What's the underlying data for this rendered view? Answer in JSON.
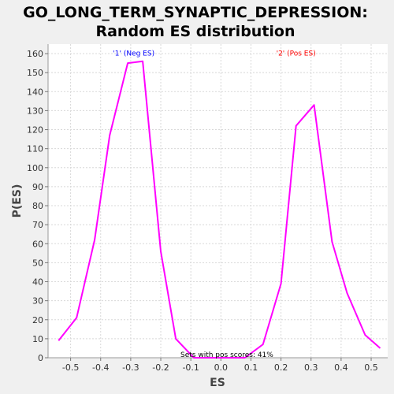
{
  "chart_data": {
    "type": "line",
    "title": "GO_LONG_TERM_SYNAPTIC_DEPRESSION: Random ES distribution",
    "title_lines": [
      "GO_LONG_TERM_SYNAPTIC_DEPRESSION:",
      "Random ES distribution"
    ],
    "xlabel": "ES",
    "ylabel": "P(ES)",
    "xlim": [
      -0.575,
      0.555
    ],
    "ylim": [
      0,
      165
    ],
    "x_ticks": [
      -0.5,
      -0.4,
      -0.3,
      -0.2,
      -0.1,
      0.0,
      0.1,
      0.2,
      0.3,
      0.4,
      0.5
    ],
    "x_tick_labels": [
      "-0.5",
      "-0.4",
      "-0.3",
      "-0.2",
      "-0.1",
      "0.0",
      "0.1",
      "0.2",
      "0.3",
      "0.4",
      "0.5"
    ],
    "y_ticks": [
      0,
      10,
      20,
      30,
      40,
      50,
      60,
      70,
      80,
      90,
      100,
      110,
      120,
      130,
      140,
      150,
      160
    ],
    "y_tick_labels": [
      "0",
      "10",
      "20",
      "30",
      "40",
      "50",
      "60",
      "70",
      "80",
      "90",
      "100",
      "110",
      "120",
      "130",
      "140",
      "150",
      "160"
    ],
    "grid": true,
    "series": [
      {
        "color": "#ff00ff",
        "x": [
          -0.54,
          -0.48,
          -0.42,
          -0.37,
          -0.31,
          -0.26,
          -0.2,
          -0.15,
          -0.09,
          -0.04,
          0.02,
          0.08,
          0.14,
          0.2,
          0.25,
          0.31,
          0.37,
          0.42,
          0.48,
          0.53
        ],
        "y": [
          9,
          21,
          62,
          117,
          155,
          156,
          56,
          10,
          0,
          0,
          0,
          0,
          7,
          39,
          122,
          133,
          61,
          34,
          12,
          5
        ]
      }
    ],
    "annotations": [
      {
        "text": "'1' (Neg ES)",
        "x": -0.29,
        "y": 159,
        "color": "#0000ff"
      },
      {
        "text": "'2' (Pos ES)",
        "x": 0.25,
        "y": 159,
        "color": "#ff0000"
      },
      {
        "text": "Sets with pos scores: 41%",
        "x": 0.02,
        "y": 0.5,
        "color": "#000000"
      }
    ]
  }
}
